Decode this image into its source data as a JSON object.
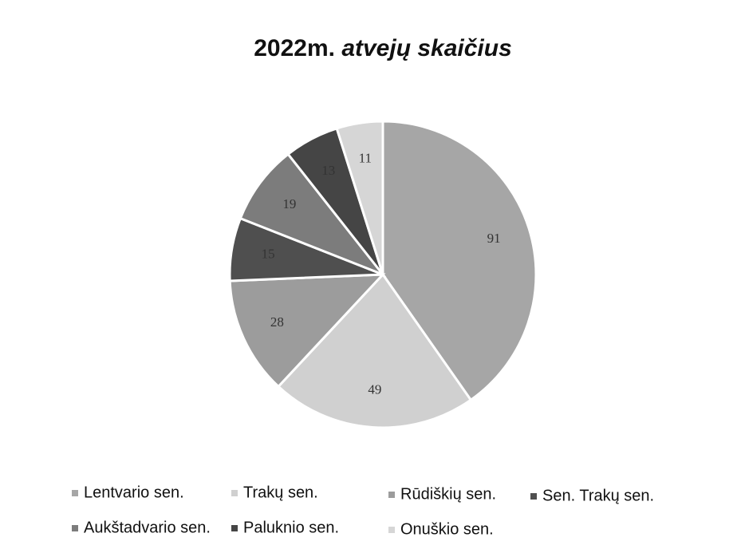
{
  "chart_data": {
    "type": "pie",
    "title": "2022m. atvejų skaičius",
    "categories": [
      "Lentvario sen.",
      "Trakų sen.",
      "Rūdiškių sen.",
      "Sen. Trakų sen.",
      "Aukštadvario sen.",
      "Paluknio sen.",
      "Onuškio sen."
    ],
    "values": [
      91,
      49,
      28,
      15,
      19,
      13,
      11
    ],
    "colors": [
      "#a6a6a6",
      "#d0d0d0",
      "#9c9c9c",
      "#4f4f4f",
      "#7c7c7c",
      "#454545",
      "#d6d6d6"
    ]
  }
}
